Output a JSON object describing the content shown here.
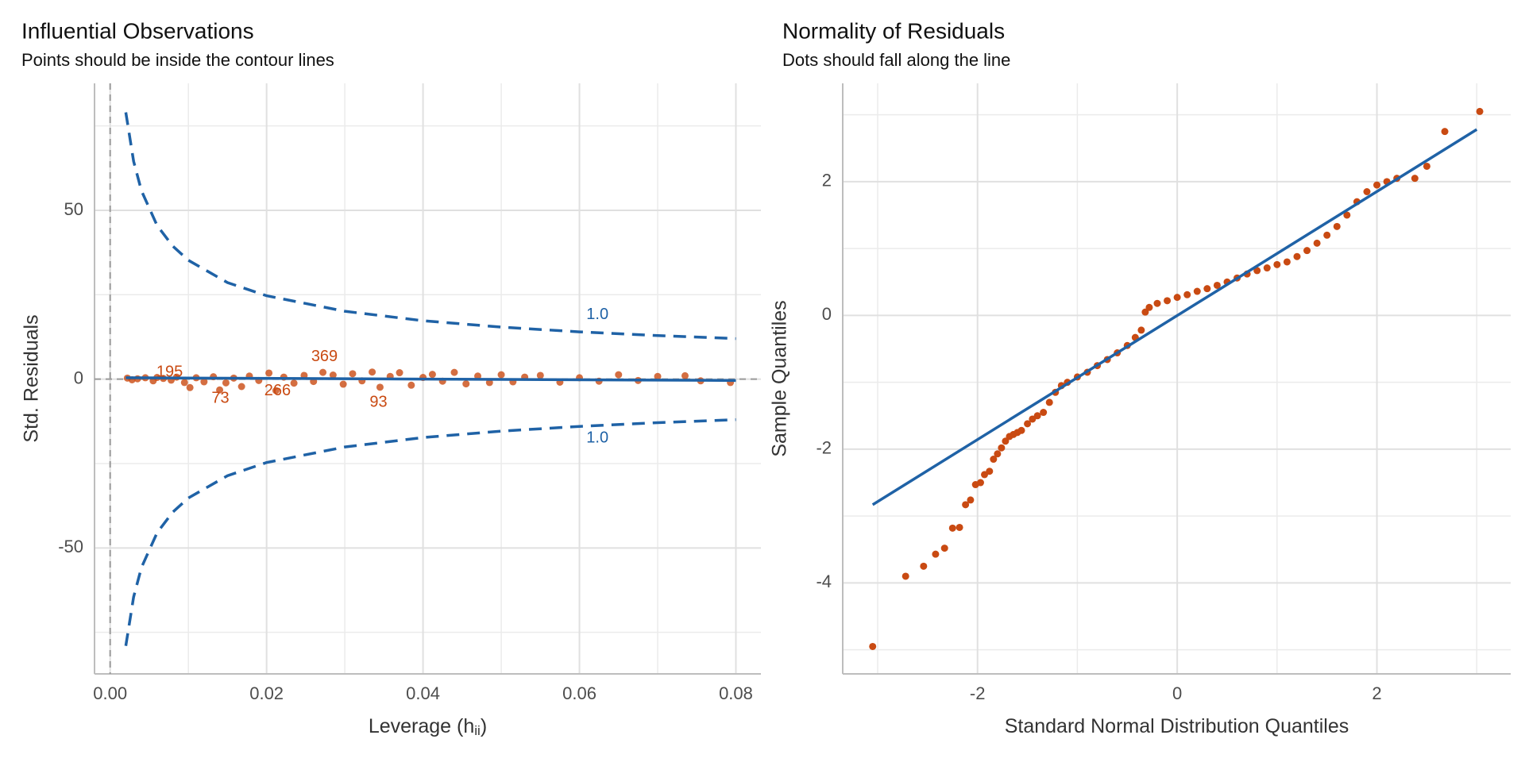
{
  "chart_data": [
    {
      "type": "scatter",
      "title": "Influential Observations",
      "subtitle": "Points should be inside the contour lines",
      "x_label_parts": [
        "Leverage (h",
        "ii",
        ")"
      ],
      "y_label": "Std. Residuals",
      "xlim": [
        -0.002,
        0.0832
      ],
      "ylim": [
        -87.3,
        87.6
      ],
      "xticks": [
        {
          "value": 0,
          "label": "0.00"
        },
        {
          "value": 0.02,
          "label": "0.02"
        },
        {
          "value": 0.04,
          "label": "0.04"
        },
        {
          "value": 0.06,
          "label": "0.06"
        },
        {
          "value": 0.08,
          "label": "0.08"
        }
      ],
      "yticks": [
        -50,
        0,
        50
      ],
      "minor_xticks": [
        0.01,
        0.03,
        0.05,
        0.07
      ],
      "minor_yticks": [
        -75,
        -25,
        25,
        75
      ],
      "grid": true,
      "vline": 0,
      "hline": 0,
      "lines": [
        {
          "color": "#1f62a6",
          "dash": true,
          "x": [
            0.002,
            0.003,
            0.004,
            0.006,
            0.008,
            0.01,
            0.015,
            0.02,
            0.03,
            0.04,
            0.05,
            0.06,
            0.07,
            0.08
          ],
          "values": [
            79.0,
            64.5,
            55.8,
            45.5,
            39.4,
            35.2,
            28.6,
            24.7,
            20.1,
            17.3,
            15.4,
            14.0,
            12.9,
            12.0
          ]
        },
        {
          "color": "#1f62a6",
          "dash": true,
          "x": [
            0.002,
            0.003,
            0.004,
            0.006,
            0.008,
            0.01,
            0.015,
            0.02,
            0.03,
            0.04,
            0.05,
            0.06,
            0.07,
            0.08
          ],
          "values": [
            -79.0,
            -64.5,
            -55.8,
            -45.5,
            -39.4,
            -35.2,
            -28.6,
            -24.7,
            -20.1,
            -17.3,
            -15.4,
            -14.0,
            -12.9,
            -12.0
          ]
        },
        {
          "color": "#1f62a6",
          "dash": false,
          "x": [
            0.002,
            0.08
          ],
          "values": [
            0.4,
            -0.4
          ]
        }
      ],
      "points": {
        "color": "#c94a12",
        "opacity": 0.8,
        "x": [
          0.0022,
          0.0028,
          0.0035,
          0.0045,
          0.0055,
          0.006,
          0.0068,
          0.0078,
          0.0085,
          0.0095,
          0.0102,
          0.011,
          0.012,
          0.0132,
          0.014,
          0.0148,
          0.0158,
          0.0168,
          0.0178,
          0.019,
          0.0203,
          0.0212,
          0.0222,
          0.0235,
          0.0248,
          0.026,
          0.0272,
          0.0285,
          0.0298,
          0.031,
          0.0322,
          0.0335,
          0.0345,
          0.0358,
          0.037,
          0.0385,
          0.04,
          0.0412,
          0.0425,
          0.044,
          0.0455,
          0.047,
          0.0485,
          0.05,
          0.0515,
          0.053,
          0.055,
          0.0575,
          0.06,
          0.0625,
          0.065,
          0.0675,
          0.07,
          0.0735,
          0.0755,
          0.0793
        ],
        "values": [
          0.3,
          -0.2,
          0.1,
          0.4,
          -0.5,
          0.5,
          0.2,
          -0.3,
          0.6,
          -1.0,
          -2.5,
          0.4,
          -0.8,
          0.7,
          -3.2,
          -1.1,
          0.3,
          -2.2,
          0.9,
          -0.4,
          1.8,
          -3.4,
          0.6,
          -1.2,
          1.1,
          -0.7,
          2.0,
          1.2,
          -1.5,
          1.6,
          -0.5,
          2.1,
          -2.4,
          0.8,
          1.9,
          -1.8,
          0.5,
          1.4,
          -0.6,
          2.0,
          -1.4,
          0.9,
          -1.0,
          1.3,
          -0.8,
          0.6,
          1.1,
          -0.9,
          0.4,
          -0.6,
          1.3,
          -0.4,
          0.8,
          1.0,
          -0.5,
          -1.0
        ]
      },
      "annotations": [
        {
          "text": "195",
          "x": 0.0076,
          "y": 2,
          "color": "#c94a12"
        },
        {
          "text": "73",
          "x": 0.0141,
          "y": -5.8,
          "color": "#c94a12"
        },
        {
          "text": "266",
          "x": 0.0214,
          "y": -3.5,
          "color": "#c94a12"
        },
        {
          "text": "369",
          "x": 0.0274,
          "y": 6.6,
          "color": "#c94a12"
        },
        {
          "text": "93",
          "x": 0.0343,
          "y": -7,
          "color": "#c94a12"
        },
        {
          "text": "1.0",
          "x": 0.0623,
          "y": 19,
          "color": "#1f62a6"
        },
        {
          "text": "1.0",
          "x": 0.0623,
          "y": -17.5,
          "color": "#1f62a6"
        }
      ]
    },
    {
      "type": "scatter",
      "title": "Normality of Residuals",
      "subtitle": "Dots should fall along the line",
      "x_label_parts": [
        "Standard Normal Distribution Quantiles"
      ],
      "y_label": "Sample Quantiles",
      "xlim": [
        -3.35,
        3.34
      ],
      "ylim": [
        -5.36,
        3.47
      ],
      "xticks": [
        -2,
        0,
        2
      ],
      "yticks": [
        -4,
        -2,
        0,
        2
      ],
      "minor_xticks": [
        -3,
        -1,
        1,
        3
      ],
      "minor_yticks": [
        -5,
        -3,
        -1,
        1,
        3
      ],
      "grid": true,
      "lines": [
        {
          "color": "#1f62a6",
          "dash": false,
          "x": [
            -3.05,
            3.0
          ],
          "values": [
            -2.83,
            2.78
          ]
        }
      ],
      "points": {
        "color": "#c94a12",
        "opacity": 1,
        "x": [
          -3.05,
          -2.72,
          -2.54,
          -2.42,
          -2.33,
          -2.25,
          -2.18,
          -2.12,
          -2.07,
          -2.02,
          -1.97,
          -1.93,
          -1.88,
          -1.84,
          -1.8,
          -1.76,
          -1.72,
          -1.68,
          -1.64,
          -1.6,
          -1.56,
          -1.5,
          -1.45,
          -1.4,
          -1.34,
          -1.28,
          -1.22,
          -1.16,
          -1.1,
          -1.0,
          -0.9,
          -0.8,
          -0.7,
          -0.6,
          -0.5,
          -0.42,
          -0.36,
          -0.32,
          -0.28,
          -0.2,
          -0.1,
          0,
          0.1,
          0.2,
          0.3,
          0.4,
          0.5,
          0.6,
          0.7,
          0.8,
          0.9,
          1.0,
          1.1,
          1.2,
          1.3,
          1.4,
          1.5,
          1.6,
          1.7,
          1.8,
          1.9,
          2.0,
          2.1,
          2.2,
          2.38,
          2.5,
          2.68,
          3.03
        ],
        "values": [
          -4.95,
          -3.9,
          -3.75,
          -3.57,
          -3.48,
          -3.18,
          -3.17,
          -2.83,
          -2.76,
          -2.53,
          -2.5,
          -2.38,
          -2.33,
          -2.15,
          -2.07,
          -1.98,
          -1.88,
          -1.81,
          -1.78,
          -1.75,
          -1.72,
          -1.62,
          -1.55,
          -1.5,
          -1.45,
          -1.3,
          -1.15,
          -1.05,
          -1.0,
          -0.92,
          -0.85,
          -0.75,
          -0.66,
          -0.56,
          -0.45,
          -0.33,
          -0.22,
          0.05,
          0.12,
          0.18,
          0.22,
          0.27,
          0.31,
          0.36,
          0.4,
          0.45,
          0.5,
          0.56,
          0.62,
          0.67,
          0.71,
          0.76,
          0.8,
          0.88,
          0.97,
          1.08,
          1.2,
          1.33,
          1.5,
          1.7,
          1.85,
          1.95,
          2.0,
          2.05,
          2.05,
          2.23,
          2.75,
          3.05
        ]
      }
    }
  ]
}
